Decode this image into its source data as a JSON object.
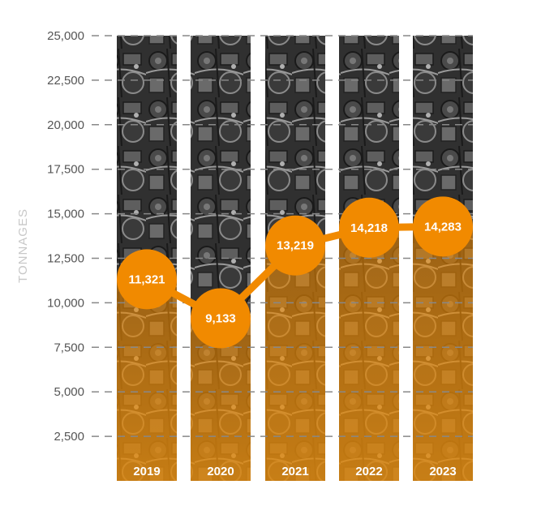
{
  "chart_data": {
    "type": "bar",
    "categories": [
      "2019",
      "2020",
      "2021",
      "2022",
      "2023"
    ],
    "values": [
      11321,
      9133,
      13219,
      14218,
      14283
    ],
    "value_labels": [
      "11,321",
      "9,133",
      "13,219",
      "14,218",
      "14,283"
    ],
    "title": "",
    "xlabel": "",
    "ylabel": "TONNAGES",
    "ylim": [
      0,
      25000
    ],
    "yticks": [
      2500,
      5000,
      7500,
      10000,
      12500,
      15000,
      17500,
      20000,
      22500,
      25000
    ],
    "ytick_labels": [
      "2,500",
      "5,000",
      "7,500",
      "10,000",
      "12,500",
      "15,000",
      "17,500",
      "20,000",
      "22,500",
      "25,000"
    ],
    "grid": true,
    "overlay": "line-with-markers",
    "colors": {
      "accent": "#f18a00",
      "bar_fill_top": "#2b2b2b",
      "bar_fill_bottom": "#c47a14",
      "grid": "#888888",
      "tick_text": "#555555",
      "ylabel_text": "#c8c8c8"
    }
  }
}
